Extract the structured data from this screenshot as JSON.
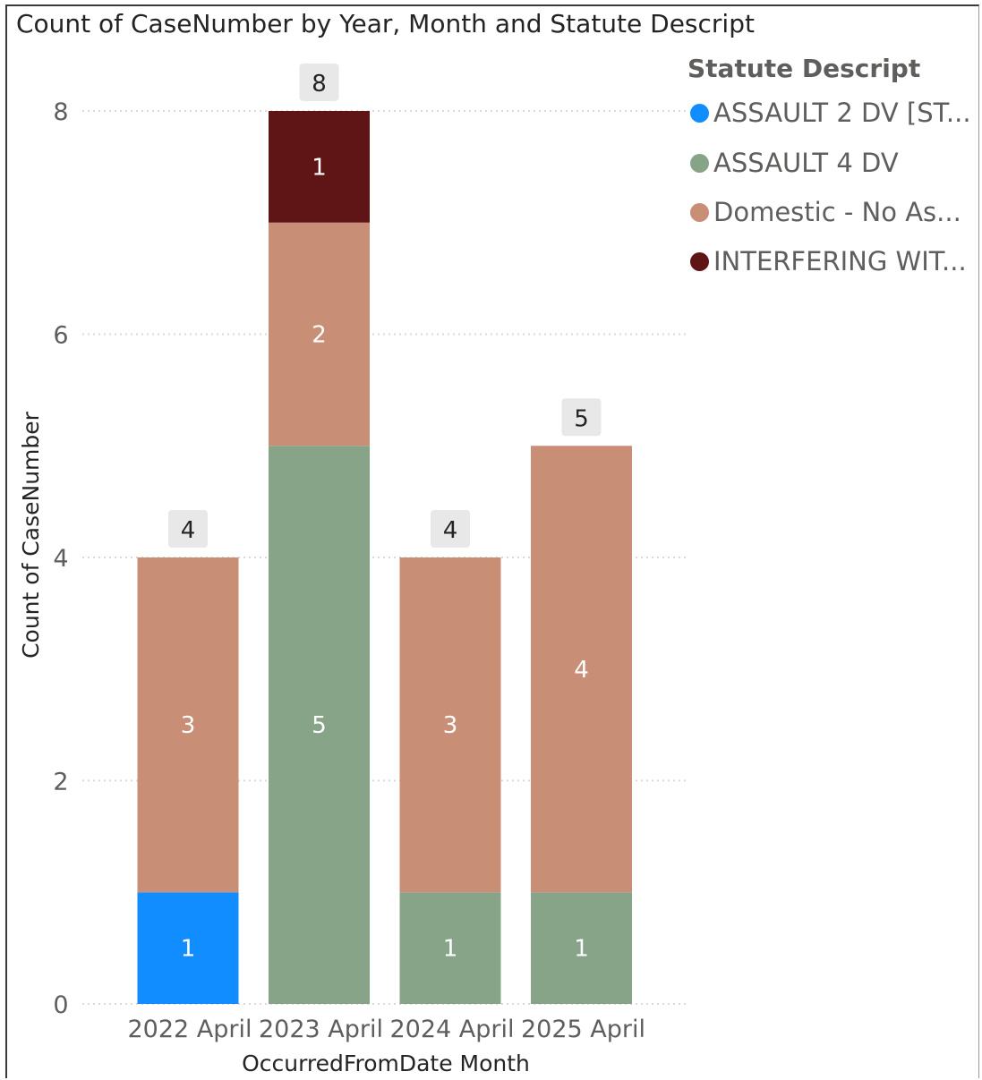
{
  "title": "Count of CaseNumber by Year, Month and Statute Descript",
  "legend": {
    "title": "Statute Descript",
    "items": [
      {
        "label": "ASSAULT 2 DV [ST...",
        "color": "#118DFF"
      },
      {
        "label": "ASSAULT 4 DV",
        "color": "#88A488"
      },
      {
        "label": "Domestic - No As...",
        "color": "#C98E76"
      },
      {
        "label": "INTERFERING WIT...",
        "color": "#5F1515"
      }
    ]
  },
  "chart_data": {
    "type": "bar",
    "stacked": true,
    "title": "Count of CaseNumber by Year, Month and Statute Descript",
    "xlabel": "OccurredFromDate Month",
    "ylabel": "Count of CaseNumber",
    "ylim": [
      0,
      8
    ],
    "yticks": [
      0,
      2,
      4,
      6,
      8
    ],
    "grid": true,
    "legend_position": "right",
    "categories": [
      "2022 April",
      "2023 April",
      "2024 April",
      "2025 April"
    ],
    "series": [
      {
        "name": "ASSAULT 2 DV [ST...",
        "color": "#118DFF",
        "values": [
          1,
          0,
          0,
          0
        ]
      },
      {
        "name": "ASSAULT 4 DV",
        "color": "#88A488",
        "values": [
          0,
          5,
          1,
          1
        ]
      },
      {
        "name": "Domestic - No As...",
        "color": "#C98E76",
        "values": [
          3,
          2,
          3,
          4
        ]
      },
      {
        "name": "INTERFERING WIT...",
        "color": "#5F1515",
        "values": [
          0,
          1,
          0,
          0
        ]
      }
    ],
    "totals": [
      4,
      8,
      4,
      5
    ]
  }
}
